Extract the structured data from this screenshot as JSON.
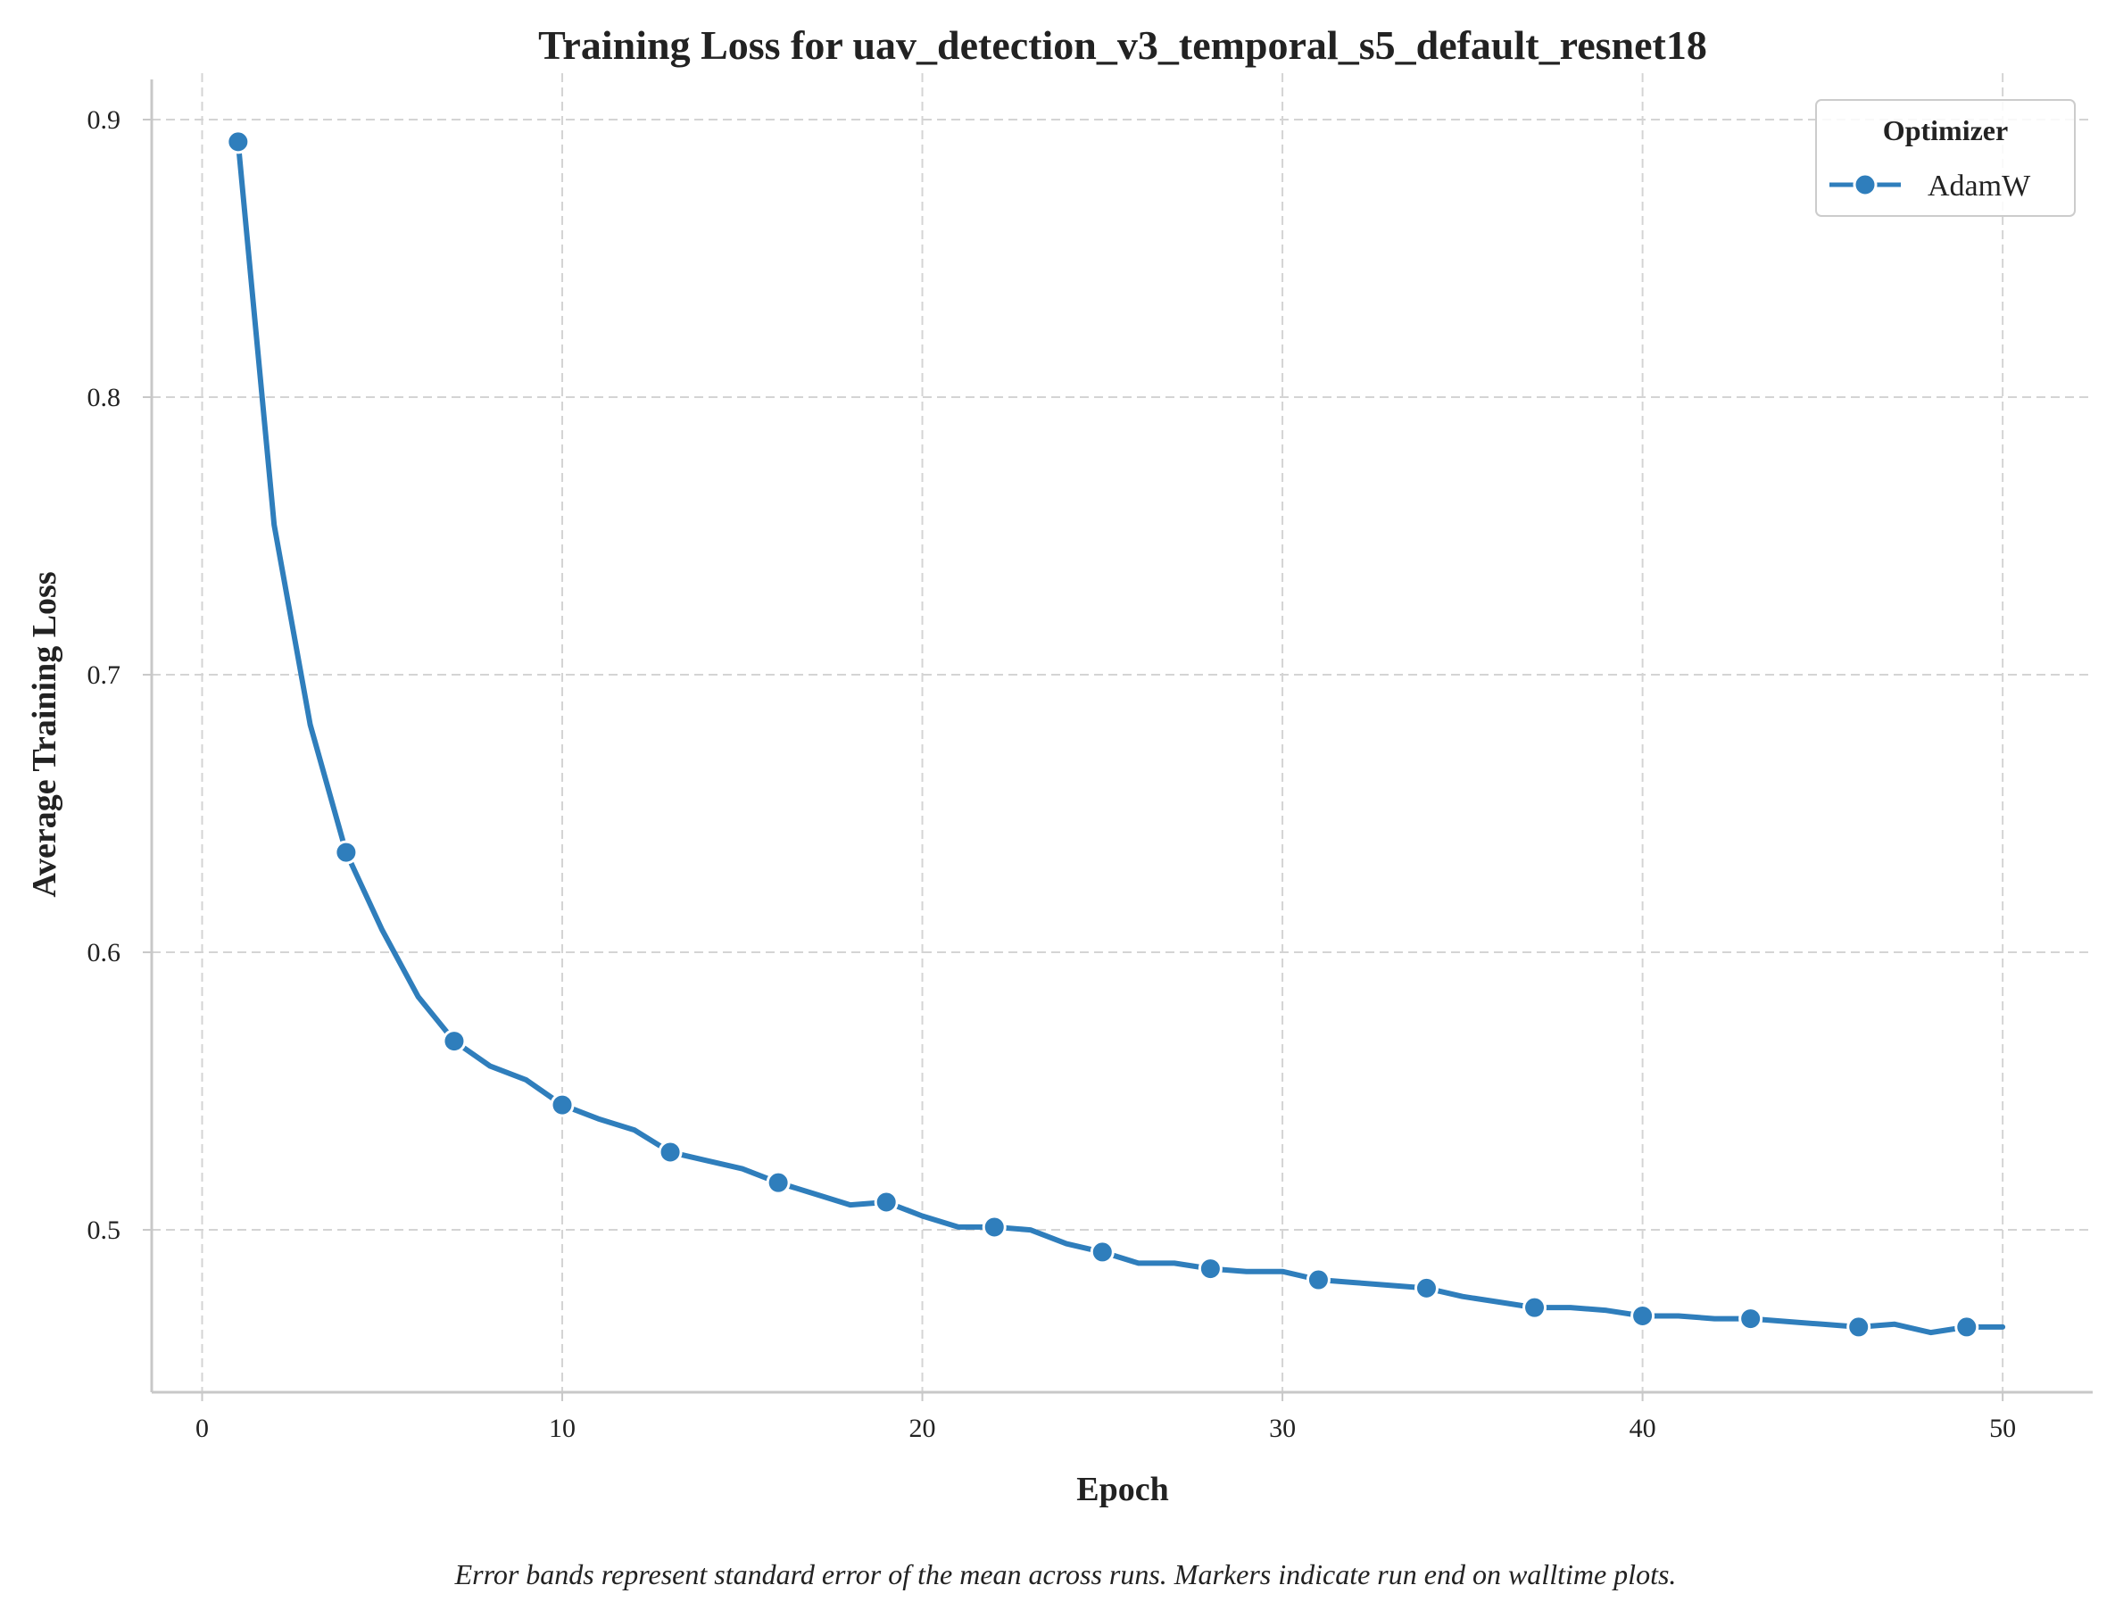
{
  "chart_data": {
    "type": "line",
    "title": "Training Loss for uav_detection_v3_temporal_s5_default_resnet18",
    "xlabel": "Epoch",
    "ylabel": "Average Training Loss",
    "xlim": [
      -1.4,
      52.5
    ],
    "ylim": [
      0.4415,
      0.9135
    ],
    "xticks": [
      0,
      10,
      20,
      30,
      40,
      50
    ],
    "xtick_labels": [
      "0",
      "10",
      "20",
      "30",
      "40",
      "50"
    ],
    "yticks": [
      0.5,
      0.6,
      0.7,
      0.8,
      0.9
    ],
    "ytick_labels": [
      "0.5",
      "0.6",
      "0.7",
      "0.8",
      "0.9"
    ],
    "grid": true,
    "legend": {
      "title": "Optimizer",
      "placement": "top-right"
    },
    "caption": "Error bands represent standard error of the mean across runs. Markers indicate run end on walltime plots.",
    "series": [
      {
        "name": "AdamW",
        "color": "#2f7ebc",
        "marker_every": 3,
        "x": [
          1,
          2,
          3,
          4,
          5,
          6,
          7,
          8,
          9,
          10,
          11,
          12,
          13,
          14,
          15,
          16,
          17,
          18,
          19,
          20,
          21,
          22,
          23,
          24,
          25,
          26,
          27,
          28,
          29,
          30,
          31,
          32,
          33,
          34,
          35,
          36,
          37,
          38,
          39,
          40,
          41,
          42,
          43,
          44,
          45,
          46,
          47,
          48,
          49,
          50
        ],
        "y": [
          0.892,
          0.754,
          0.682,
          0.636,
          0.608,
          0.584,
          0.568,
          0.559,
          0.554,
          0.545,
          0.54,
          0.536,
          0.528,
          0.525,
          0.522,
          0.517,
          0.513,
          0.509,
          0.51,
          0.505,
          0.501,
          0.501,
          0.5,
          0.495,
          0.492,
          0.488,
          0.488,
          0.486,
          0.485,
          0.485,
          0.482,
          0.481,
          0.48,
          0.479,
          0.476,
          0.474,
          0.472,
          0.472,
          0.471,
          0.469,
          0.469,
          0.468,
          0.468,
          0.467,
          0.466,
          0.465,
          0.466,
          0.463,
          0.465,
          0.465
        ]
      }
    ]
  }
}
